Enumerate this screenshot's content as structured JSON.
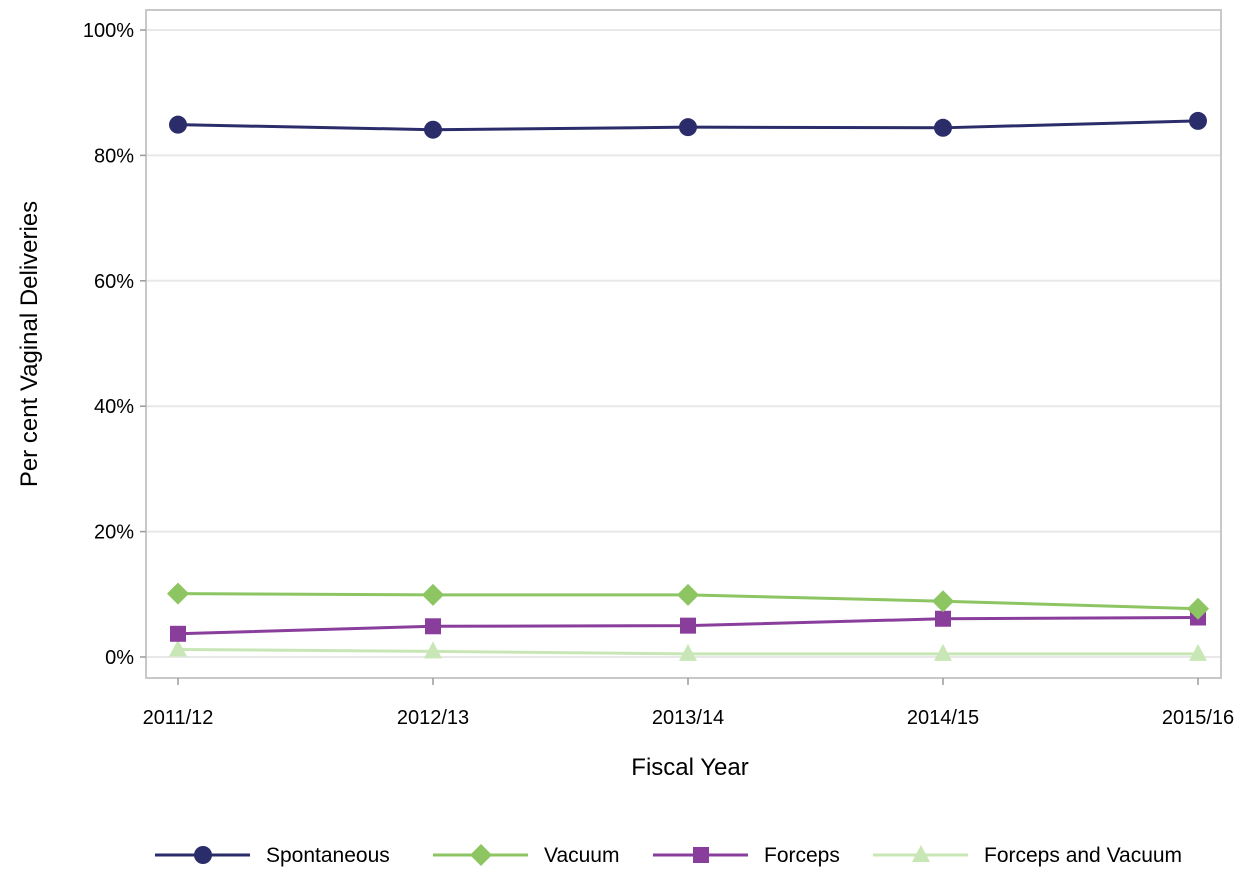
{
  "chart_data": {
    "type": "line",
    "title": "",
    "xlabel": "Fiscal Year",
    "ylabel": "Per cent Vaginal Deliveries",
    "categories": [
      "2011/12",
      "2012/13",
      "2013/14",
      "2014/15",
      "2015/16"
    ],
    "ylim": [
      0,
      100
    ],
    "yticks": [
      0,
      20,
      40,
      60,
      80,
      100
    ],
    "ytick_labels": [
      "0%",
      "20%",
      "40%",
      "60%",
      "80%",
      "100%"
    ],
    "grid": "horizontal",
    "legend_position": "bottom",
    "series": [
      {
        "name": "Spontaneous",
        "values": [
          84.9,
          84.1,
          84.5,
          84.4,
          85.5
        ],
        "color": "#2b2d6b",
        "marker": "circle"
      },
      {
        "name": "Vacuum",
        "values": [
          10.1,
          9.9,
          9.9,
          8.9,
          7.7
        ],
        "color": "#8cc561",
        "marker": "diamond"
      },
      {
        "name": "Forceps",
        "values": [
          3.7,
          4.9,
          5.0,
          6.1,
          6.3
        ],
        "color": "#8a3e9c",
        "marker": "square"
      },
      {
        "name": "Forceps and Vacuum",
        "values": [
          1.2,
          0.9,
          0.5,
          0.5,
          0.5
        ],
        "color": "#c9e7b6",
        "marker": "triangle"
      }
    ]
  }
}
